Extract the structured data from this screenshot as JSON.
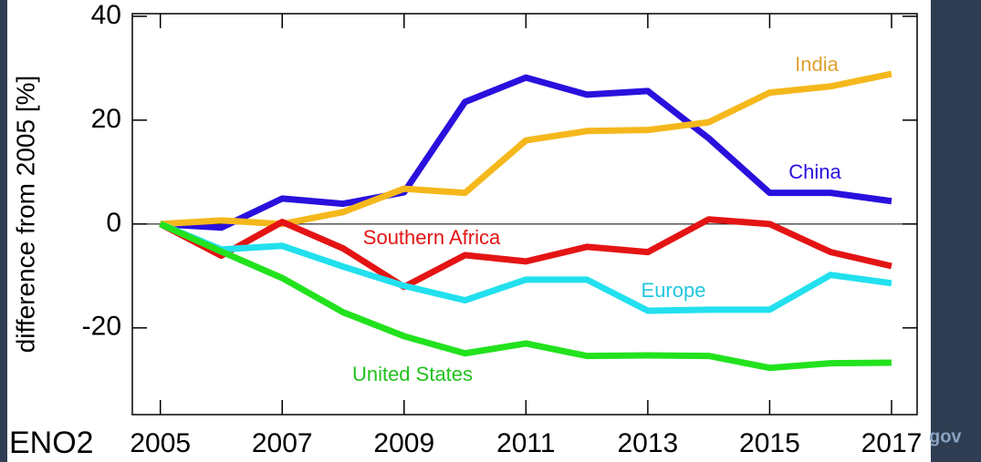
{
  "chart_data": {
    "type": "line",
    "ylabel": "difference from 2005 [%]",
    "x": [
      2005,
      2006,
      2007,
      2008,
      2009,
      2010,
      2011,
      2012,
      2013,
      2014,
      2015,
      2016,
      2017
    ],
    "series": [
      {
        "name": "China",
        "color": "#2a10dd",
        "values": [
          0,
          -0.7,
          4.9,
          3.9,
          6.1,
          23.5,
          28.2,
          24.9,
          25.6,
          16.5,
          6.0,
          6.0,
          4.4
        ]
      },
      {
        "name": "India",
        "color": "#f5b81c",
        "values": [
          0,
          0.7,
          0,
          2.3,
          6.8,
          6.0,
          16.1,
          17.9,
          18.1,
          19.6,
          25.3,
          26.5,
          28.9
        ]
      },
      {
        "name": "Southern Africa",
        "color": "#e41414",
        "values": [
          0,
          -6.1,
          0.4,
          -4.7,
          -12.1,
          -6.0,
          -7.2,
          -4.4,
          -5.4,
          0.9,
          0,
          -5.4,
          -8.1
        ]
      },
      {
        "name": "Europe",
        "color": "#22e0ee",
        "values": [
          0,
          -4.9,
          -4.2,
          -8.2,
          -11.9,
          -14.7,
          -10.7,
          -10.7,
          -16.7,
          -16.5,
          -16.5,
          -9.8,
          -11.4
        ]
      },
      {
        "name": "United States",
        "color": "#22e21e",
        "values": [
          0,
          -5.3,
          -10.4,
          -17.0,
          -21.6,
          -24.9,
          -23.0,
          -25.4,
          -25.3,
          -25.4,
          -27.7,
          -26.8,
          -26.7
        ]
      }
    ],
    "label_colors": [
      "#2a10dd",
      "#e0a030",
      "#e41414",
      "#22c8e0",
      "#22c21e"
    ],
    "xlim": [
      2004.54,
      2017.42
    ],
    "ylim": [
      -36.7,
      40.5
    ],
    "xticks": [
      2005,
      2007,
      2009,
      2011,
      2013,
      2015,
      2017
    ],
    "yticks": [
      -20,
      0,
      20,
      40
    ],
    "hline": 0
  },
  "overlay": {
    "left_text": "ENO2",
    "right_text": "gov"
  }
}
